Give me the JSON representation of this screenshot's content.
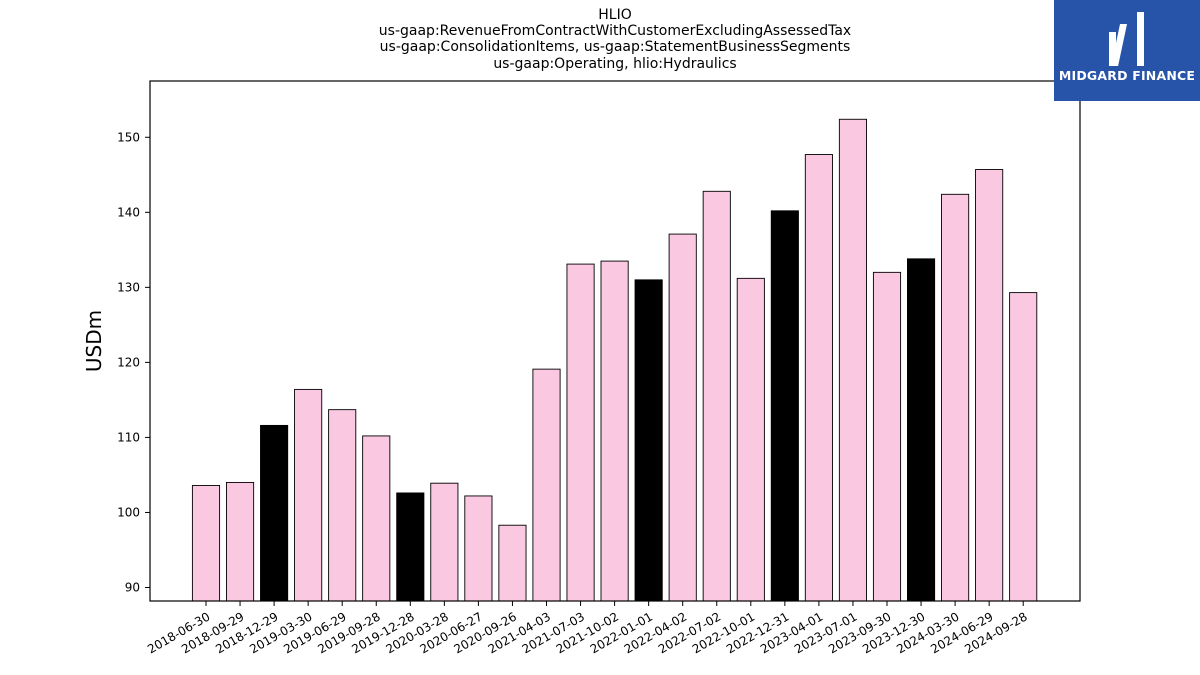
{
  "chart_data": {
    "type": "bar",
    "title_lines": [
      "HLIO",
      "us-gaap:RevenueFromContractWithCustomerExcludingAssessedTax",
      "us-gaap:ConsolidationItems, us-gaap:StatementBusinessSegments",
      "us-gaap:Operating, hlio:Hydraulics"
    ],
    "ylabel": "USDm",
    "ylim": [
      88.2,
      157.5
    ],
    "yticks": [
      90,
      100,
      110,
      120,
      130,
      140,
      150
    ],
    "categories": [
      "2018-06-30",
      "2018-09-29",
      "2018-12-29",
      "2019-03-30",
      "2019-06-29",
      "2019-09-28",
      "2019-12-28",
      "2020-03-28",
      "2020-06-27",
      "2020-09-26",
      "2021-04-03",
      "2021-07-03",
      "2021-10-02",
      "2022-01-01",
      "2022-04-02",
      "2022-07-02",
      "2022-10-01",
      "2022-12-31",
      "2023-04-01",
      "2023-07-01",
      "2023-09-30",
      "2023-12-30",
      "2024-03-30",
      "2024-06-29",
      "2024-09-28"
    ],
    "values": [
      103.6,
      104.0,
      111.6,
      116.4,
      113.7,
      110.2,
      102.6,
      103.9,
      102.2,
      98.3,
      119.1,
      133.1,
      133.5,
      131.0,
      137.1,
      142.8,
      131.2,
      140.2,
      147.7,
      152.4,
      132.0,
      133.8,
      142.4,
      145.7,
      129.3
    ],
    "highlight": [
      false,
      false,
      true,
      false,
      false,
      false,
      true,
      false,
      false,
      false,
      false,
      false,
      false,
      true,
      false,
      false,
      false,
      true,
      false,
      false,
      false,
      true,
      false,
      false,
      false
    ],
    "colors": {
      "bar": "#fbc8e2",
      "highlight": "#000000",
      "edge": "#000000"
    }
  },
  "logo": {
    "text": "MIDGARD FINANCE",
    "background": "#2753a8"
  }
}
